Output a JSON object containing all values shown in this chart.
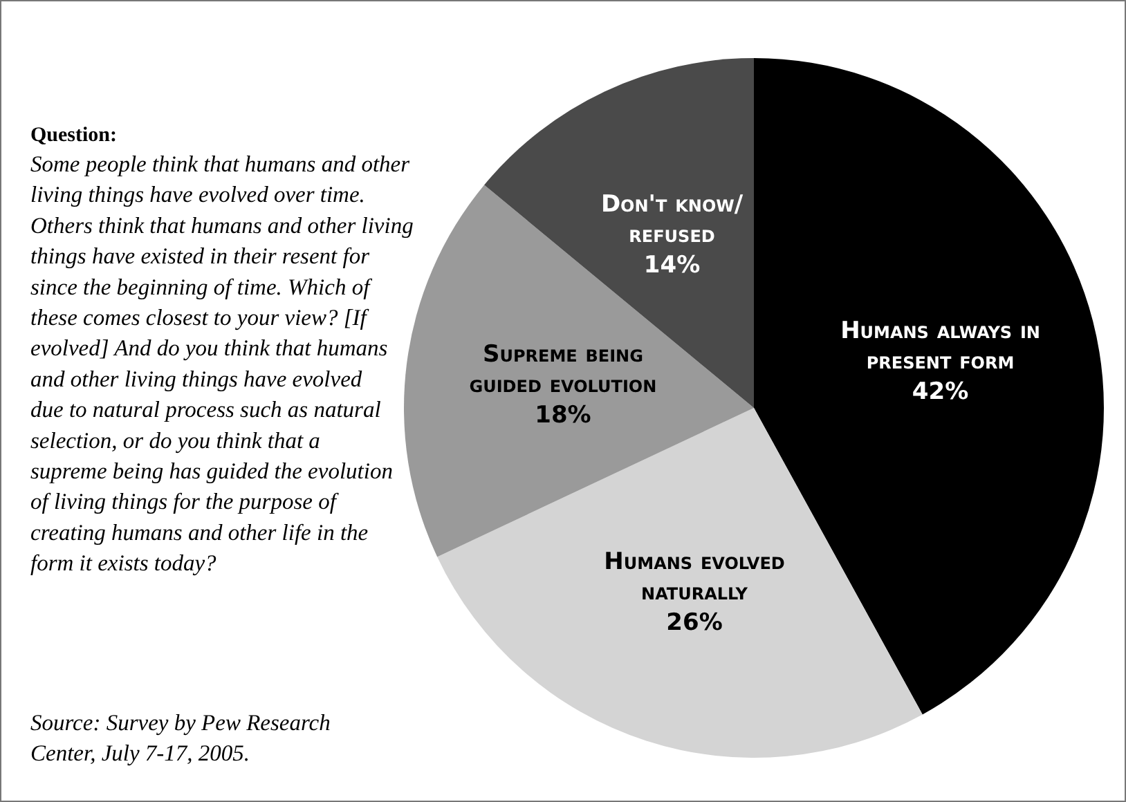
{
  "chart_data": {
    "type": "pie",
    "title": "Question:",
    "subtitle": "Some people think that humans and other living things have evolved over time. Others think that humans and other living things have existed in their resent for since the beginning of time. Which of these comes closest to your view? [If evolved] And do you think that humans and other living things have evolved due to natural process such as natural selection, or do you think that a supreme being has guided the evolution of living things for the purpose of creating humans and other life in the form it exists today?",
    "annotations": [
      "Source: Survey by Pew Research Center, July 7-17, 2005."
    ],
    "categories": [
      "Humans always in present form",
      "Humans evolved naturally",
      "Supreme being guided evolution",
      "Don't know/ refused"
    ],
    "values": [
      42,
      26,
      18,
      14
    ],
    "colors": [
      "#000000",
      "#d4d4d4",
      "#9a9a9a",
      "#4a4a4a"
    ],
    "value_labels": [
      "42%",
      "26%",
      "18%",
      "14%"
    ]
  }
}
